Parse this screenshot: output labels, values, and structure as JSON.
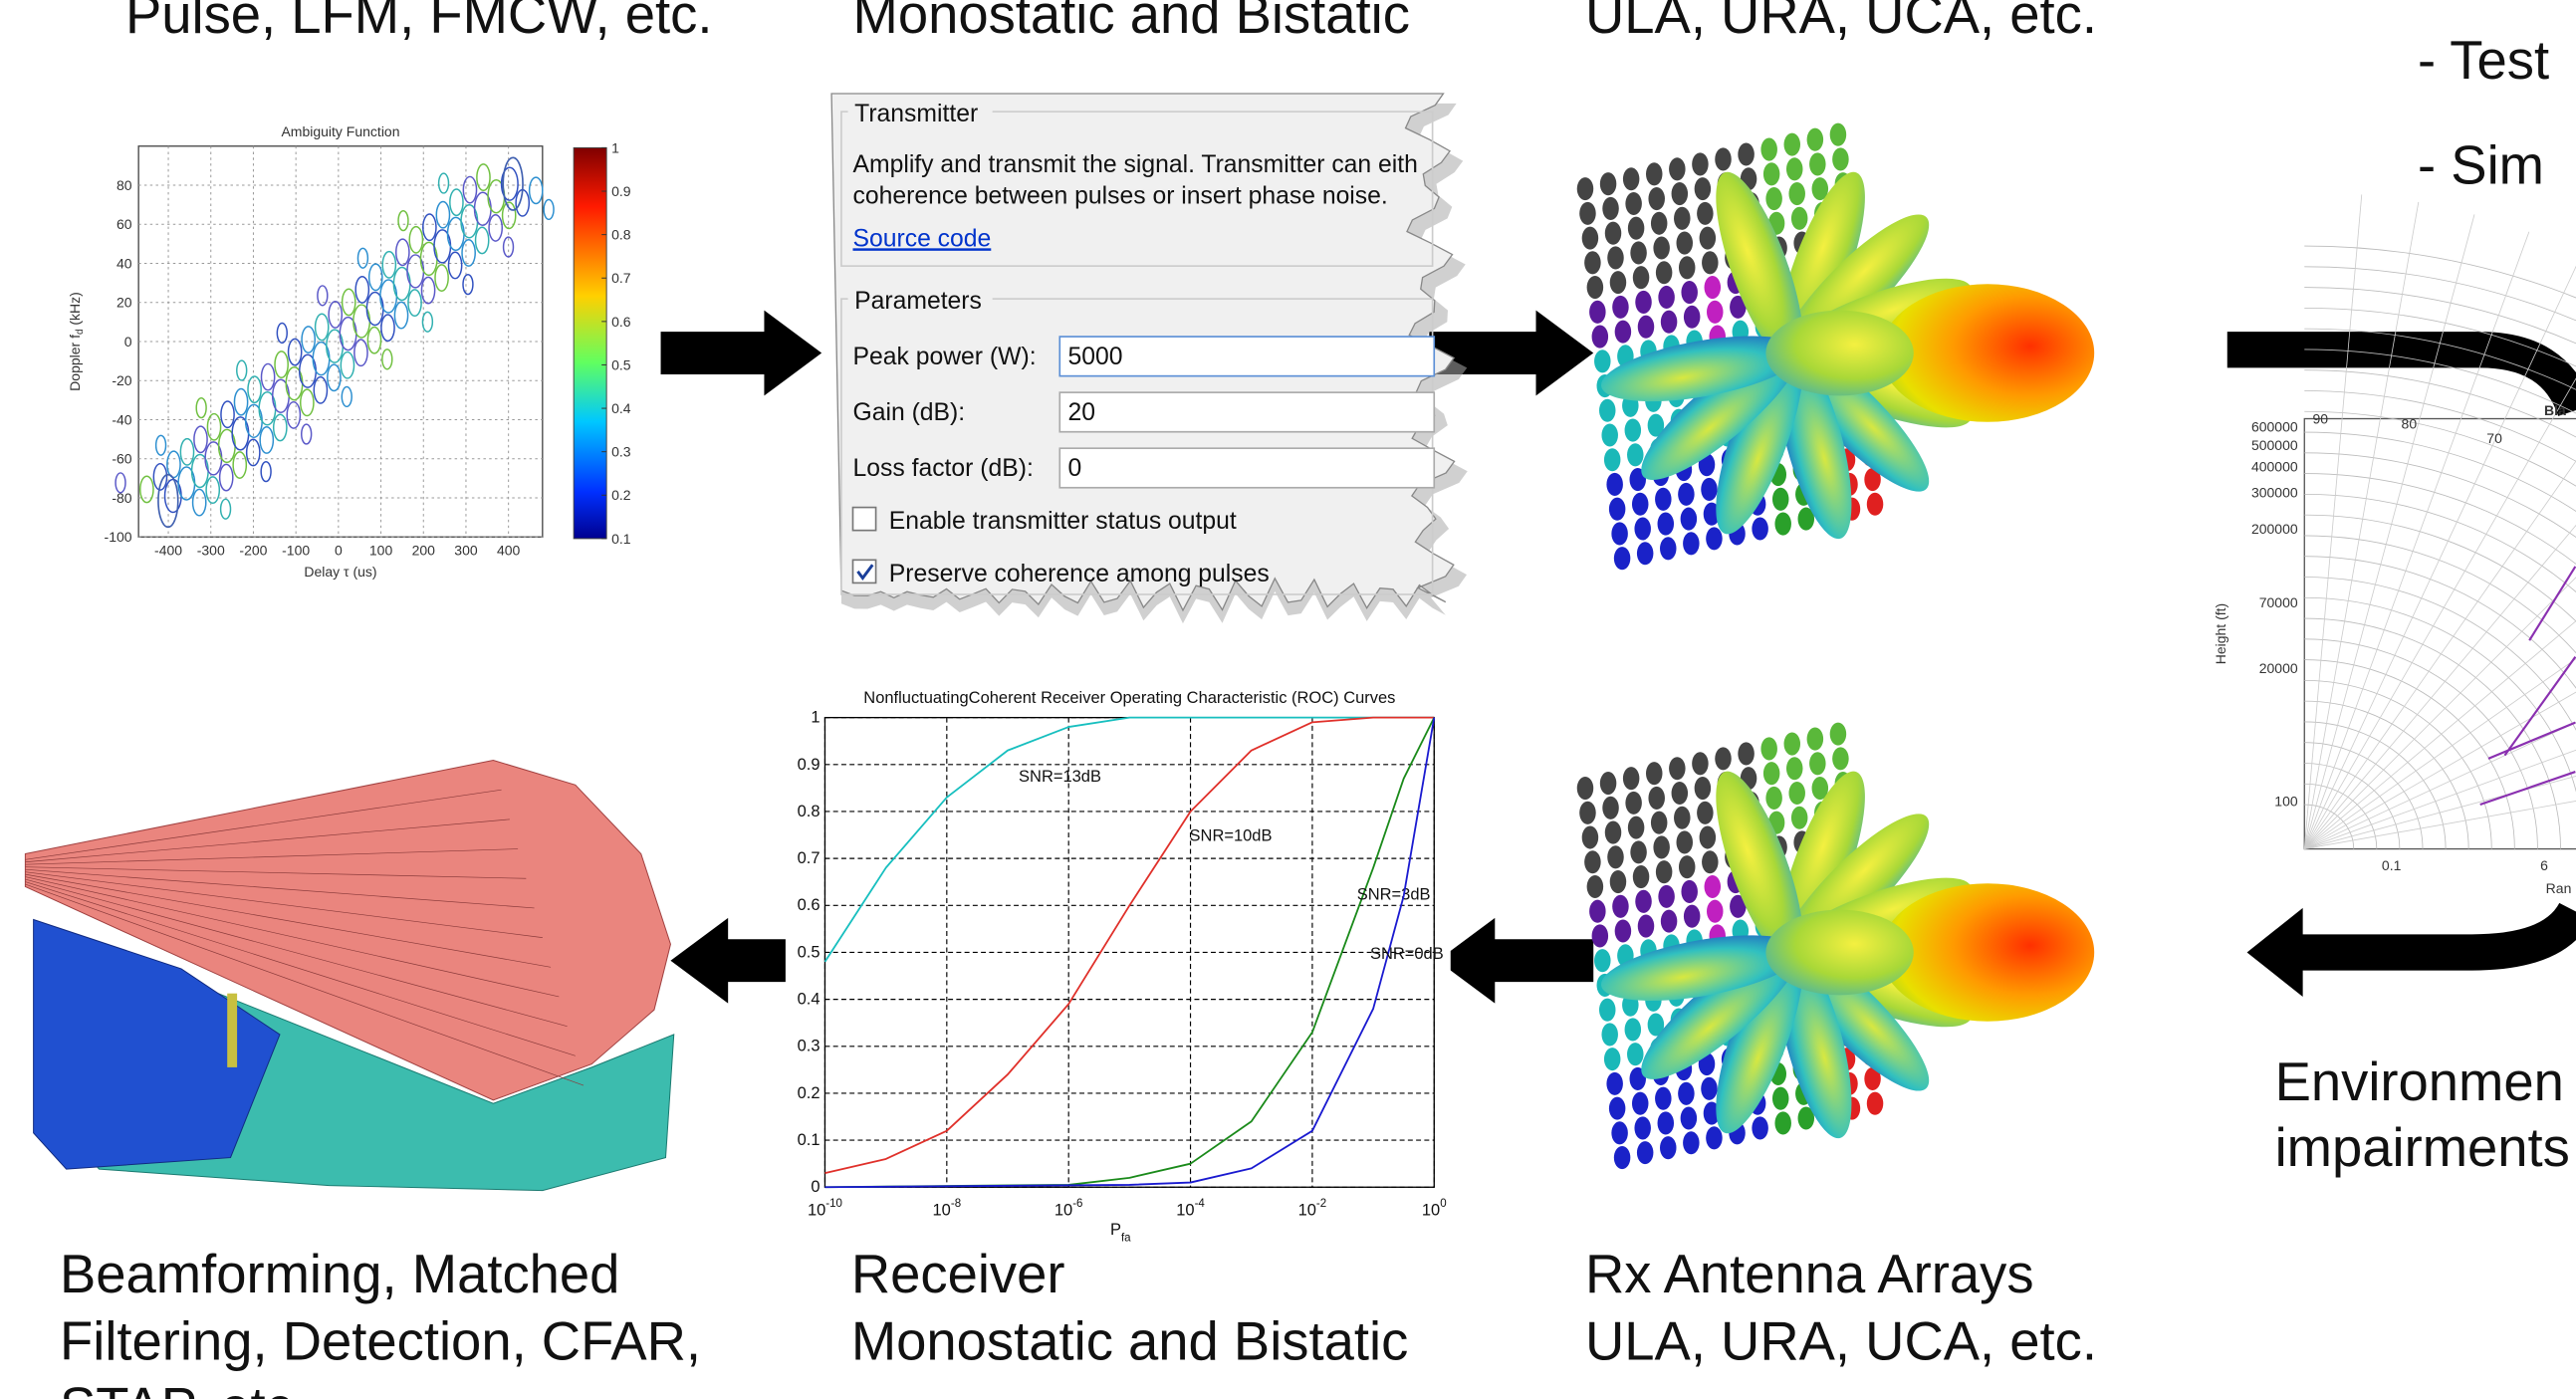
{
  "labels": {
    "top": [
      "Pulse, LFM, FMCW, etc.",
      "Monostatic and Bistatic",
      "ULA, URA, UCA, etc."
    ],
    "right_top": [
      "- Test",
      "- Sim"
    ],
    "bottom_left": [
      "Beamforming, Matched",
      "Filtering, Detection, CFAR,",
      "STAP, etc."
    ],
    "receiver": [
      "Receiver",
      "Monostatic and Bistatic"
    ],
    "rx_arrays": [
      "Rx Antenna Arrays",
      "ULA, URA, UCA, etc."
    ],
    "environment": [
      "Environmen",
      "impairments"
    ]
  },
  "transmitter_dialog": {
    "title": "Transmitter",
    "description": [
      "Amplify and transmit the signal. Transmitter can eith",
      "coherence between pulses or insert phase noise."
    ],
    "link": "Source code",
    "section": "Parameters",
    "fields": [
      {
        "label": "Peak power (W):",
        "value": "5000"
      },
      {
        "label": "Gain (dB):",
        "value": "20"
      },
      {
        "label": "Loss factor (dB):",
        "value": "0"
      }
    ],
    "checkboxes": [
      {
        "label": "Enable transmitter status output",
        "checked": false
      },
      {
        "label": "Preserve coherence among pulses",
        "checked": true
      }
    ]
  },
  "ambiguity_plot": {
    "title": "Ambiguity Function",
    "ylabel": [
      "Doppler f",
      "d",
      " (kHz)"
    ],
    "xlabel": "Delay τ (us)",
    "xlim": [
      -470,
      480
    ],
    "xticks": [
      -400,
      -300,
      -200,
      -100,
      0,
      100,
      200,
      300,
      400
    ],
    "ylim": [
      -100,
      100
    ],
    "yticks": [
      -100,
      -80,
      -60,
      -40,
      -20,
      0,
      20,
      40,
      60,
      80
    ],
    "clim": [
      0.1,
      1
    ],
    "cticks": [
      0.1,
      0.2,
      0.3,
      0.4,
      0.5,
      0.6,
      0.7,
      0.8,
      0.9,
      1
    ]
  },
  "roc_plot": {
    "title": "NonfluctuatingCoherent Receiver Operating Characteristic (ROC) Curves",
    "xlabel": [
      "P",
      "fa"
    ],
    "xtick_base": "10",
    "xlim": [
      -10,
      0
    ],
    "xticks": [
      -10,
      -8,
      -6,
      -4,
      -2,
      0
    ],
    "ylim": [
      0,
      1
    ],
    "yticks": [
      0,
      0.1,
      0.2,
      0.3,
      0.4,
      0.5,
      0.6,
      0.7,
      0.8,
      0.9,
      1
    ],
    "series": [
      {
        "name": "SNR=13dB",
        "color": "#17bfbf",
        "x": [
          -10,
          -9,
          -8,
          -7,
          -6,
          -5,
          0
        ],
        "values": [
          0.48,
          0.68,
          0.83,
          0.93,
          0.98,
          1,
          1
        ]
      },
      {
        "name": "SNR=10dB",
        "color": "#e0302a",
        "x": [
          -10,
          -9,
          -8,
          -7,
          -6,
          -5,
          -4,
          -3,
          -2,
          -1,
          0
        ],
        "values": [
          0.03,
          0.06,
          0.12,
          0.24,
          0.39,
          0.6,
          0.8,
          0.93,
          0.99,
          1,
          1
        ]
      },
      {
        "name": "SNR=3dB",
        "color": "#1a8a1a",
        "x": [
          -10,
          -6,
          -5,
          -4,
          -3,
          -2,
          -1,
          -0.5,
          0
        ],
        "values": [
          0,
          0.005,
          0.02,
          0.05,
          0.14,
          0.33,
          0.68,
          0.87,
          1
        ]
      },
      {
        "name": "SNR=0dB",
        "color": "#1a1ad0",
        "x": [
          -10,
          -5,
          -4,
          -3,
          -2,
          -1,
          -0.5,
          0
        ],
        "values": [
          0,
          0.005,
          0.01,
          0.04,
          0.12,
          0.38,
          0.62,
          1
        ]
      }
    ]
  },
  "coverage_plot": {
    "title": "Bla",
    "ylabel": "Height (ft)",
    "xlabel": "Ran",
    "height_ticks": [
      600000,
      500000,
      400000,
      300000,
      200000,
      70000,
      20000,
      100
    ],
    "angle_ticks": [
      90,
      80,
      70
    ],
    "range_ticks": [
      0.1,
      6
    ]
  }
}
